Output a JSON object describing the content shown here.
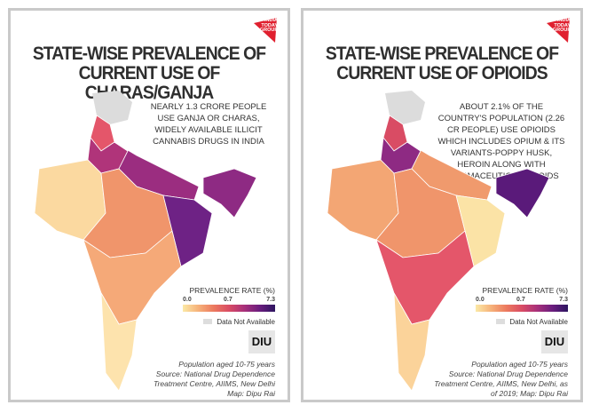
{
  "brand": "INDIA TODAY GROUP",
  "badge": "DIU",
  "legend": {
    "title": "PREVALENCE RATE (%)",
    "min": "0.0",
    "mid": "0.7",
    "max": "7.3",
    "na": "Data Not Available"
  },
  "panels": [
    {
      "title_line1": "STATE-WISE PREVALENCE OF",
      "title_line2": "CURRENT USE OF CHARAS/GANJA",
      "blurb": "NEARLY 1.3 CRORE PEOPLE USE GANJA OR CHARAS, WIDELY AVAILABLE ILLICIT CANNABIS DRUGS IN INDIA",
      "foot1": "Population aged 10-75 years",
      "foot2": "Source: National Drug Dependence",
      "foot3": "Treatment Centre, AIIMS, New Delhi",
      "foot4": "Map: Dipu Rai",
      "colors": {
        "north": "#e4566a",
        "nw": "#b0347a",
        "gangetic": "#9b2d80",
        "west": "#fbd9a0",
        "central": "#f0956b",
        "east": "#6e2285",
        "south": "#f5a978",
        "tip": "#fde3ad",
        "ne": "#8e2a83"
      }
    },
    {
      "title_line1": "STATE-WISE PREVALENCE OF",
      "title_line2": "CURRENT USE OF OPIOIDS",
      "blurb": "ABOUT 2.1% OF THE COUNTRY'S POPULATION (2.26 CR PEOPLE) USE OPIOIDS WHICH INCLUDES OPIUM & ITS VARIANTS-POPPY HUSK, HEROIN ALONG WITH PHARMACEUTICAL OPIOIDS",
      "foot1": "Population aged 10-75 years",
      "foot2": "Source: National Drug Dependence",
      "foot3": "Treatment Centre, AIIMS, New Delhi, as",
      "foot4": "of 2019; Map: Dipu Rai",
      "colors": {
        "north": "#d94c64",
        "nw": "#8e2a83",
        "gangetic": "#f09a6d",
        "west": "#f3a674",
        "central": "#f0956b",
        "east": "#fbe3a6",
        "south": "#e4566a",
        "tip": "#fbd39a",
        "ne": "#5a1a7a"
      }
    }
  ]
}
